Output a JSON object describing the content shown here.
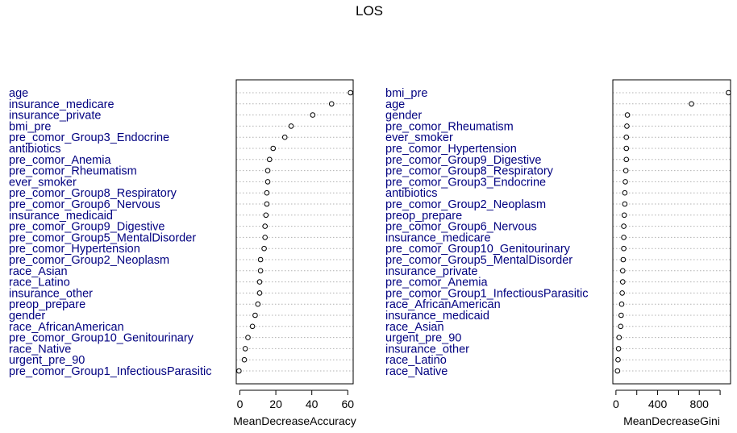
{
  "chart_data": {
    "title": "LOS",
    "type": "scatter",
    "panels": [
      {
        "xlabel": "MeanDecreaseAccuracy",
        "xlim": [
          -2,
          63
        ],
        "xticks": [
          0,
          20,
          40,
          60
        ],
        "tick_labels": [
          "0",
          "20",
          "40",
          "60"
        ],
        "grid": "dotted",
        "categories": [
          "age",
          "insurance_medicare",
          "insurance_private",
          "bmi_pre",
          "pre_comor_Group3_Endocrine",
          "antibiotics",
          "pre_comor_Anemia",
          "pre_comor_Rheumatism",
          "ever_smoker",
          "pre_comor_Group8_Respiratory",
          "pre_comor_Group6_Nervous",
          "insurance_medicaid",
          "pre_comor_Group9_Digestive",
          "pre_comor_Group5_MentalDisorder",
          "pre_comor_Hypertension",
          "pre_comor_Group2_Neoplasm",
          "race_Asian",
          "race_Latino",
          "insurance_other",
          "preop_prepare",
          "gender",
          "race_AfricanAmerican",
          "pre_comor_Group10_Genitourinary",
          "race_Native",
          "urgent_pre_90",
          "pre_comor_Group1_InfectiousParasitic"
        ],
        "values": [
          61.5,
          51,
          40.5,
          28.5,
          25,
          18.5,
          16.5,
          15.5,
          15.5,
          15,
          15,
          14.5,
          14,
          14,
          13.5,
          11.5,
          11.5,
          11,
          11,
          10,
          8.5,
          7,
          4.5,
          3,
          2.5,
          -0.5
        ]
      },
      {
        "xlabel": "MeanDecreaseGini",
        "xlim": [
          -30,
          1100
        ],
        "xticks": [
          0,
          200,
          400,
          600,
          800,
          1000
        ],
        "tick_labels": [
          "0",
          "",
          "400",
          "",
          "800",
          ""
        ],
        "grid": "dotted",
        "categories": [
          "bmi_pre",
          "age",
          "gender",
          "pre_comor_Rheumatism",
          "ever_smoker",
          "pre_comor_Hypertension",
          "pre_comor_Group9_Digestive",
          "pre_comor_Group8_Respiratory",
          "pre_comor_Group3_Endocrine",
          "antibiotics",
          "pre_comor_Group2_Neoplasm",
          "preop_prepare",
          "pre_comor_Group6_Nervous",
          "insurance_medicare",
          "pre_comor_Group10_Genitourinary",
          "pre_comor_Group5_MentalDisorder",
          "insurance_private",
          "pre_comor_Anemia",
          "pre_comor_Group1_InfectiousParasitic",
          "race_AfricanAmerican",
          "insurance_medicaid",
          "race_Asian",
          "urgent_pre_90",
          "insurance_other",
          "race_Latino",
          "race_Native"
        ],
        "values": [
          1080,
          725,
          110,
          105,
          100,
          100,
          100,
          95,
          90,
          85,
          85,
          80,
          75,
          75,
          75,
          70,
          65,
          65,
          60,
          55,
          50,
          45,
          30,
          25,
          20,
          15
        ]
      }
    ]
  }
}
